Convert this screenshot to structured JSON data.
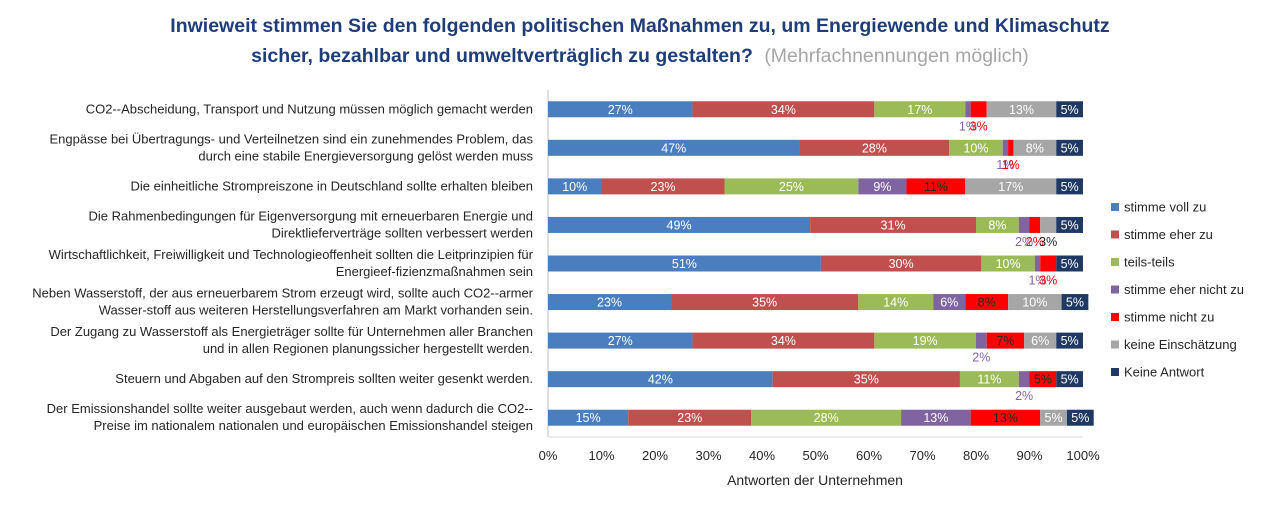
{
  "chart_data": {
    "type": "bar",
    "orientation": "horizontal",
    "stacked": true,
    "title_main_line1": "Inwieweit stimmen Sie den folgenden politischen Maßnahmen zu, um Energiewende und Klimaschutz",
    "title_main_line2": "sicher, bezahlbar und umweltverträglich zu gestalten?",
    "title_note": "(Mehrfachnennungen möglich)",
    "xlabel": "Antworten der Unternehmen",
    "xlim": [
      0,
      100
    ],
    "xticks": [
      "0%",
      "10%",
      "20%",
      "30%",
      "40%",
      "50%",
      "60%",
      "70%",
      "80%",
      "90%",
      "100%"
    ],
    "legend_position": "right",
    "categories": [
      [
        "CO2--Abscheidung, Transport und Nutzung müssen möglich gemacht werden"
      ],
      [
        "Engpässe bei Übertragungs- und Verteilnetzen sind ein zunehmendes Problem, das",
        "durch eine stabile Energieversorgung gelöst werden muss"
      ],
      [
        "Die einheitliche Strompreiszone in Deutschland sollte erhalten bleiben"
      ],
      [
        "Die Rahmenbedingungen für Eigenversorgung mit erneuerbaren Energie und",
        "Direktlieferverträge sollten verbessert werden"
      ],
      [
        "Wirtschaftlichkeit, Freiwilligkeit und Technologieoffenheit sollten die Leitprinzipien für",
        "Energieef-fizienzmaßnahmen sein"
      ],
      [
        "Neben Wasserstoff, der aus erneuerbarem Strom erzeugt wird, sollte auch CO2--armer",
        "Wasser-stoff aus weiteren Herstellungsverfahren am Markt vorhanden sein."
      ],
      [
        "Der Zugang zu Wasserstoff als Energieträger sollte für Unternehmen aller Branchen",
        "und in allen Regionen planungssicher hergestellt werden."
      ],
      [
        "Steuern und Abgaben auf den Strompreis sollten weiter gesenkt werden."
      ],
      [
        "Der Emissionshandel sollte weiter ausgebaut werden, auch wenn dadurch die CO2--",
        "Preise im nationalem nationalen und europäischen Emissionshandel steigen"
      ]
    ],
    "series": [
      {
        "name": "stimme voll zu",
        "color": "#4a7ebf",
        "values": [
          27,
          47,
          10,
          49,
          51,
          23,
          27,
          42,
          15
        ]
      },
      {
        "name": "stimme eher zu",
        "color": "#c0504d",
        "values": [
          34,
          28,
          23,
          31,
          30,
          35,
          34,
          35,
          23
        ]
      },
      {
        "name": "teils-teils",
        "color": "#9bbb59",
        "values": [
          17,
          10,
          25,
          8,
          10,
          14,
          19,
          11,
          28
        ]
      },
      {
        "name": "stimme eher nicht zu",
        "color": "#8064a2",
        "values": [
          1,
          1,
          9,
          2,
          1,
          6,
          2,
          2,
          13
        ]
      },
      {
        "name": "stimme nicht zu",
        "color": "#ff0000",
        "values": [
          3,
          1,
          11,
          2,
          3,
          8,
          7,
          5,
          13
        ]
      },
      {
        "name": "keine Einschätzung",
        "color": "#a6a6a6",
        "values": [
          13,
          8,
          17,
          3,
          0,
          10,
          6,
          0,
          5
        ]
      },
      {
        "name": "Keine Antwort",
        "color": "#1f3864",
        "values": [
          5,
          5,
          5,
          5,
          5,
          5,
          5,
          5,
          5
        ]
      }
    ]
  },
  "colors": {
    "title_main": "#1f3d7a",
    "title_note": "#a6a6a6",
    "text": "#262626",
    "axis": "#bfbfbf"
  }
}
